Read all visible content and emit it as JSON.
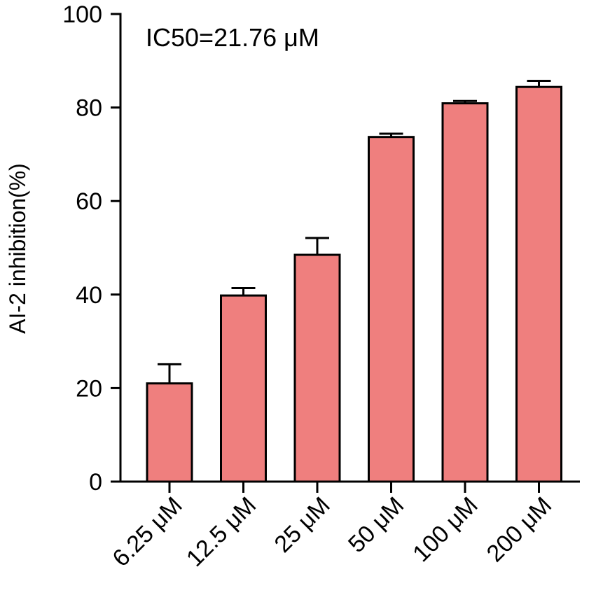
{
  "chart_data": {
    "type": "bar",
    "title": "",
    "xlabel": "",
    "ylabel": "AI-2 inhibition(%)",
    "ylim": [
      0,
      100
    ],
    "yticks": [
      0,
      20,
      40,
      60,
      80,
      100
    ],
    "categories": [
      "6.25 μM",
      "12.5 μM",
      "25 μM",
      "50 μM",
      "100 μM",
      "200 μM"
    ],
    "values": [
      21,
      39.8,
      48.5,
      73.7,
      80.9,
      84.4
    ],
    "error_upper": [
      4.1,
      1.6,
      3.6,
      0.7,
      0.5,
      1.3
    ],
    "annotation": "IC50=21.76 μM",
    "bar_color": "#ef7f7e",
    "grid": false,
    "legend": "none"
  }
}
